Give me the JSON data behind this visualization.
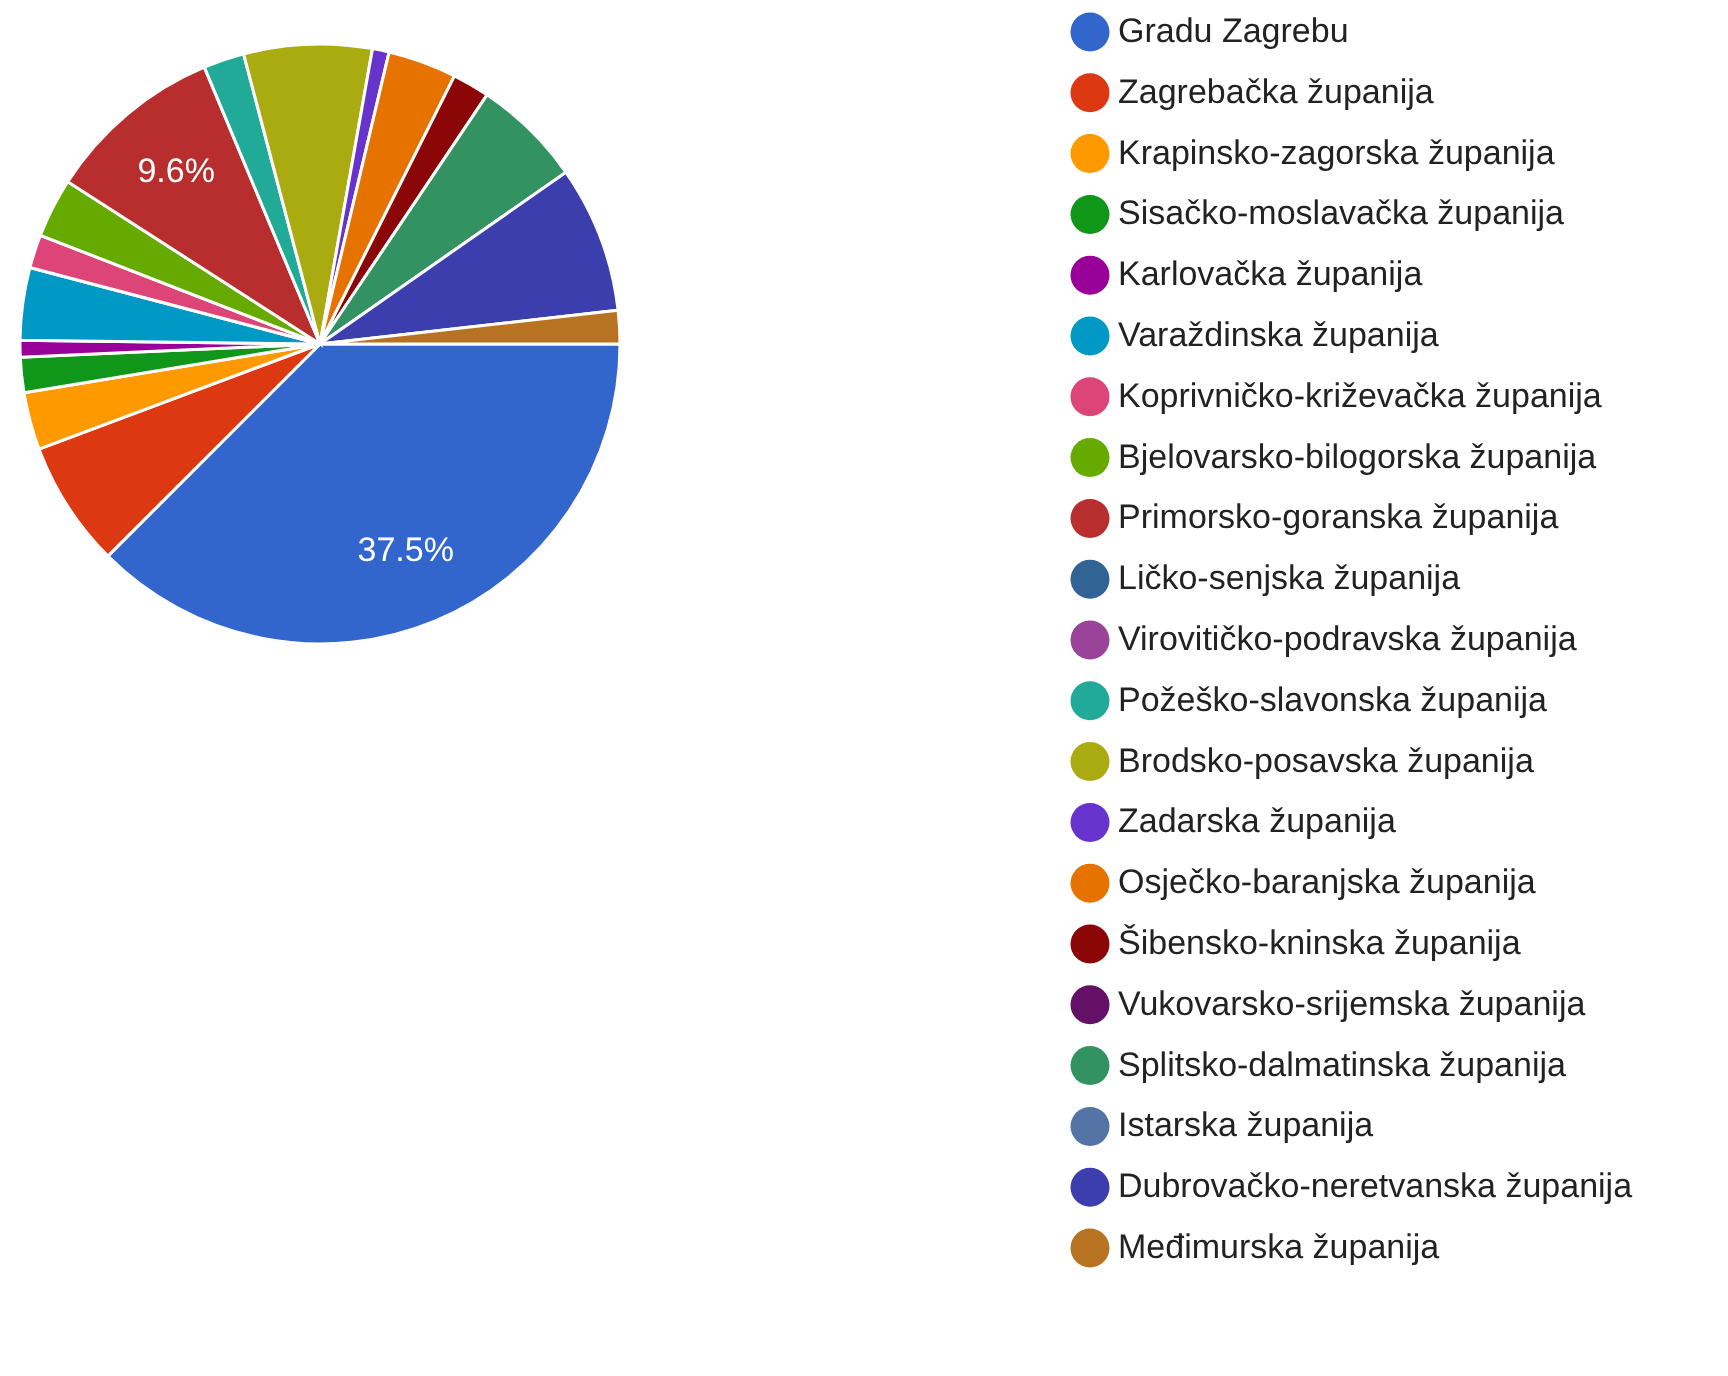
{
  "chart_data": {
    "type": "pie",
    "categories": [
      "Gradu Zagrebu",
      "Zagrebačka županija",
      "Krapinsko-zagorska županija",
      "Sisačko-moslavačka županija",
      "Karlovačka županija",
      "Varaždinska županija",
      "Koprivničko-križevačka županija",
      "Bjelovarsko-bilogorska županija",
      "Primorsko-goranska županija",
      "Ličko-senjska županija",
      "Virovitičko-podravska županija",
      "Požeško-slavonska županija",
      "Brodsko-posavska županija",
      "Zadarska županija",
      "Osječko-baranjska županija",
      "Šibensko-kninska županija",
      "Vukovarsko-srijemska županija",
      "Splitsko-dalmatinska županija",
      "Istarska županija",
      "Dubrovačko-neretvanska županija",
      "Međimurska županija"
    ],
    "values": [
      37.5,
      6.8,
      3.1,
      1.9,
      0.9,
      3.9,
      1.8,
      3.2,
      9.6,
      0,
      0,
      2.2,
      6.9,
      0.9,
      3.7,
      2.0,
      0,
      5.9,
      0,
      7.9,
      1.8
    ],
    "colors": [
      "#3366cc",
      "#dc3912",
      "#ff9900",
      "#109618",
      "#990099",
      "#0099c6",
      "#dd4477",
      "#66aa00",
      "#b82e2e",
      "#316395",
      "#994499",
      "#22aa99",
      "#aaaa11",
      "#6633cc",
      "#e67300",
      "#8b0707",
      "#651067",
      "#329262",
      "#5574a6",
      "#3b3eac",
      "#b77322"
    ],
    "value_labels": [
      "37.5%",
      null,
      null,
      null,
      null,
      null,
      null,
      null,
      "9.6%",
      null,
      null,
      null,
      null,
      null,
      null,
      null,
      null,
      null,
      null,
      null,
      null
    ],
    "legend": "right"
  }
}
